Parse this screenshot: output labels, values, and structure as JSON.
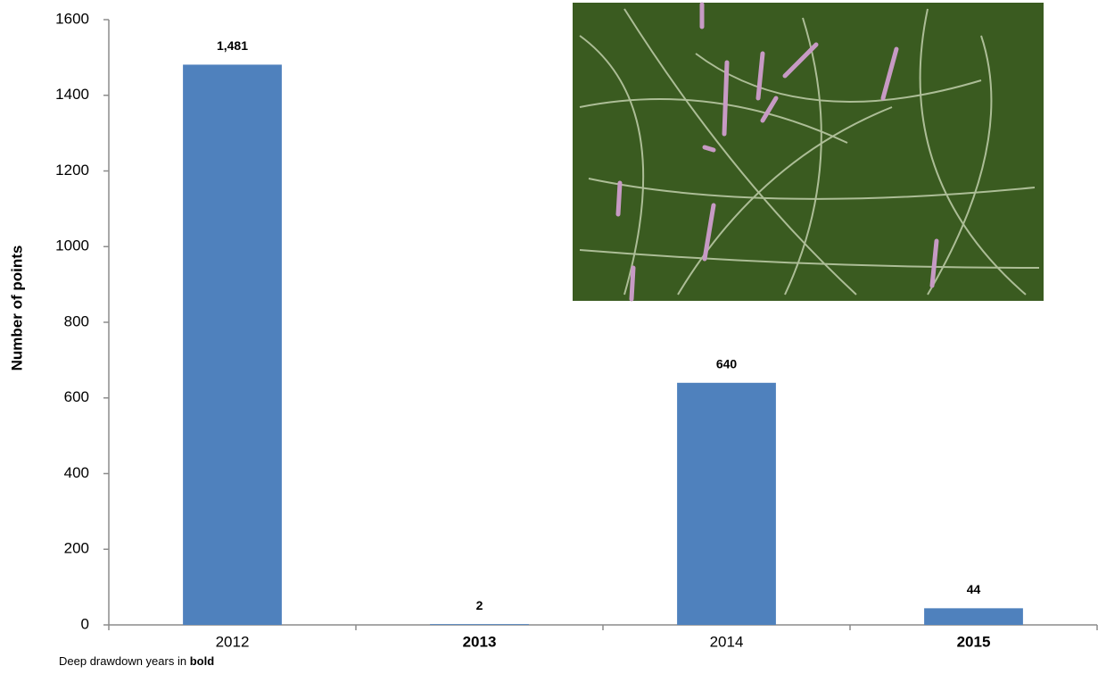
{
  "chart_data": {
    "type": "bar",
    "y_axis_label": "Number of  points",
    "categories": [
      "2012",
      "2013",
      "2014",
      "2015"
    ],
    "bold_categories": [
      false,
      true,
      false,
      true
    ],
    "values": [
      1481,
      2,
      640,
      44
    ],
    "value_labels": [
      "1,481",
      "2",
      "640",
      "44"
    ],
    "color": "#4f81bd",
    "ylim": [
      0,
      1600
    ],
    "yticks": [
      0,
      200,
      400,
      600,
      800,
      1000,
      1200,
      1400,
      1600
    ],
    "grid": false,
    "note": [
      "Deep drawdown years in",
      "bold"
    ]
  }
}
